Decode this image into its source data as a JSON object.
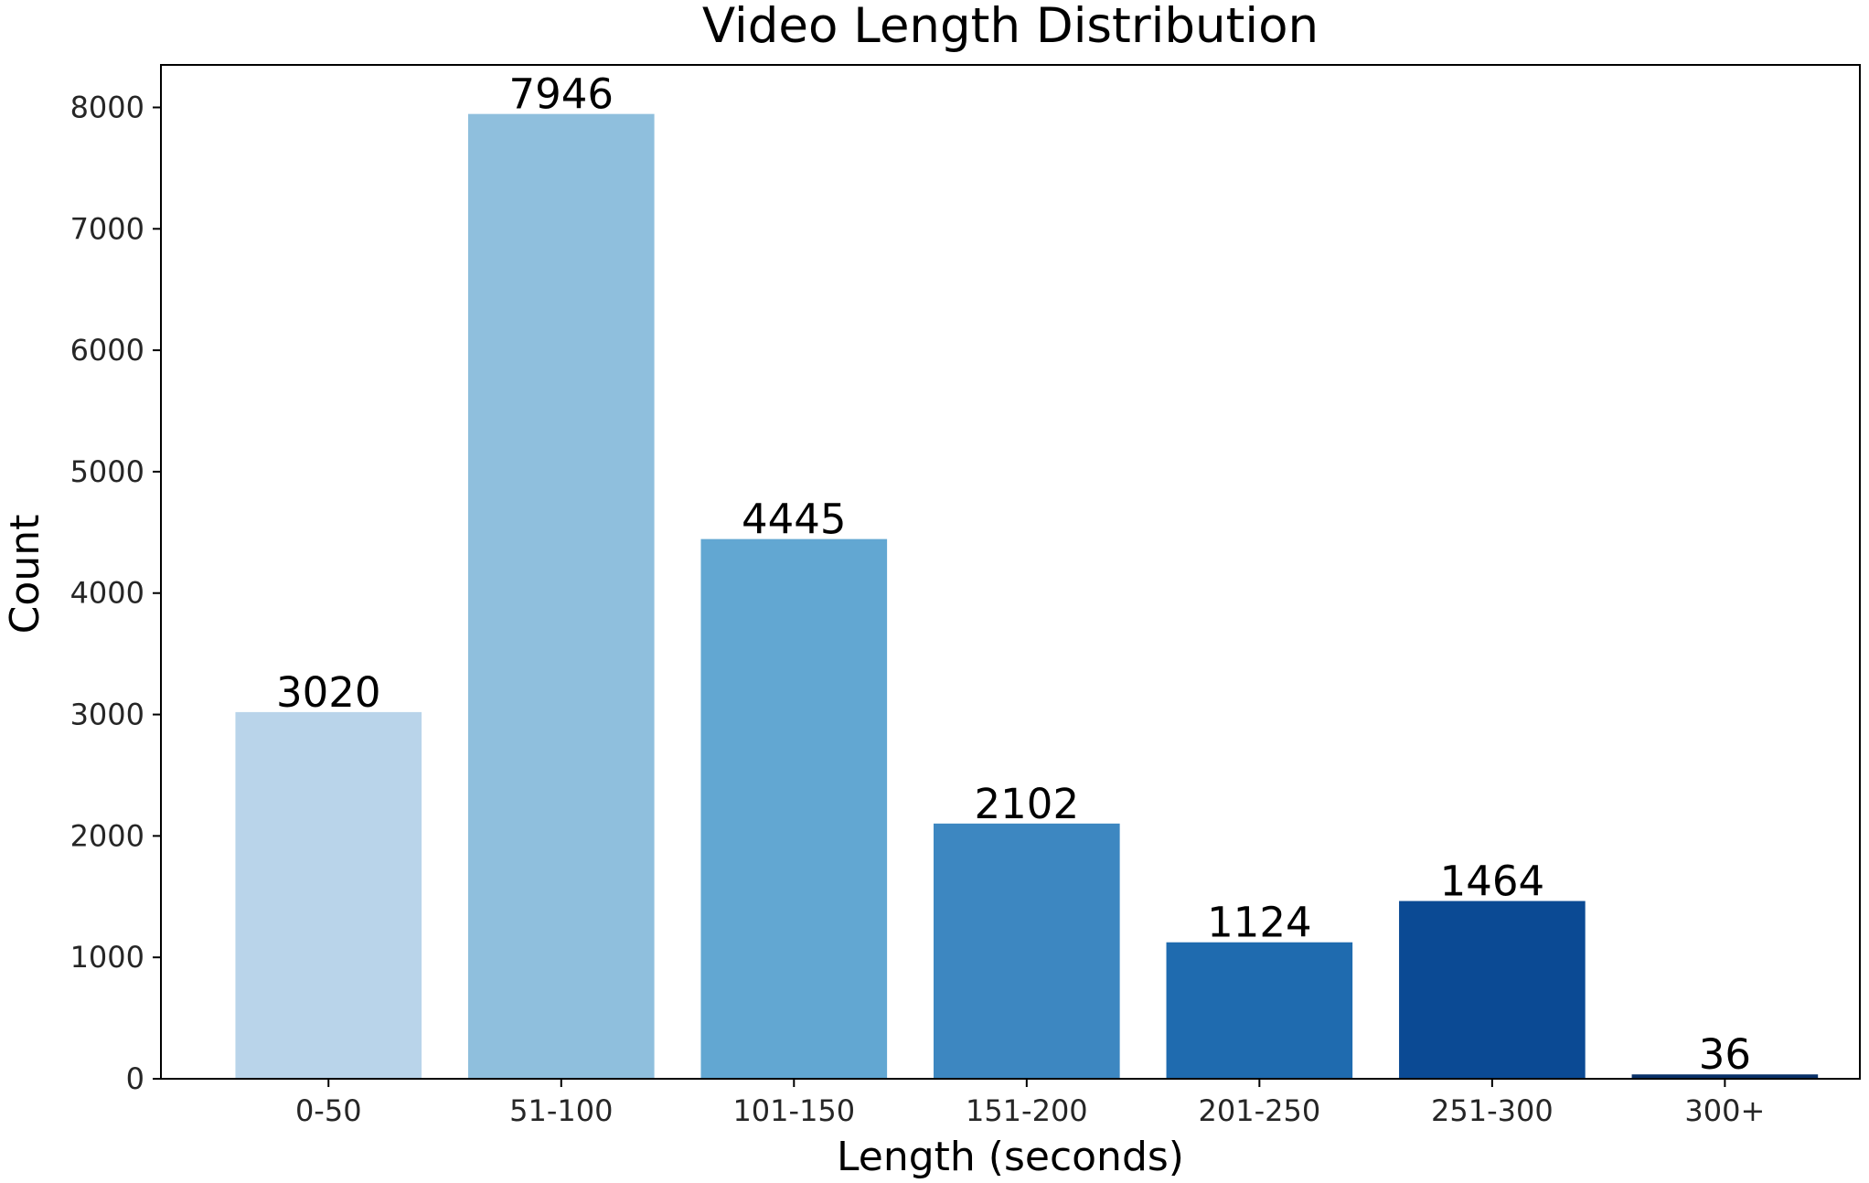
{
  "chart_data": {
    "type": "bar",
    "title": "Video Length Distribution",
    "xlabel": "Length (seconds)",
    "ylabel": "Count",
    "categories": [
      "0-50",
      "51-100",
      "101-150",
      "151-200",
      "201-250",
      "251-300",
      "300+"
    ],
    "values": [
      3020,
      7946,
      4445,
      2102,
      1124,
      1464,
      36
    ],
    "data_labels": [
      "3020",
      "7946",
      "4445",
      "2102",
      "1124",
      "1464",
      "36"
    ],
    "colors": [
      "#b9d4ea",
      "#8fbfdd",
      "#62a7d2",
      "#3d87c1",
      "#1f6baf",
      "#0b4a94",
      "#083068"
    ],
    "ylim": [
      0,
      8350
    ],
    "yticks": [
      0,
      1000,
      2000,
      3000,
      4000,
      5000,
      6000,
      7000,
      8000
    ],
    "ytick_labels": [
      "0",
      "1000",
      "2000",
      "3000",
      "4000",
      "5000",
      "6000",
      "7000",
      "8000"
    ],
    "grid": false,
    "legend": "none"
  }
}
